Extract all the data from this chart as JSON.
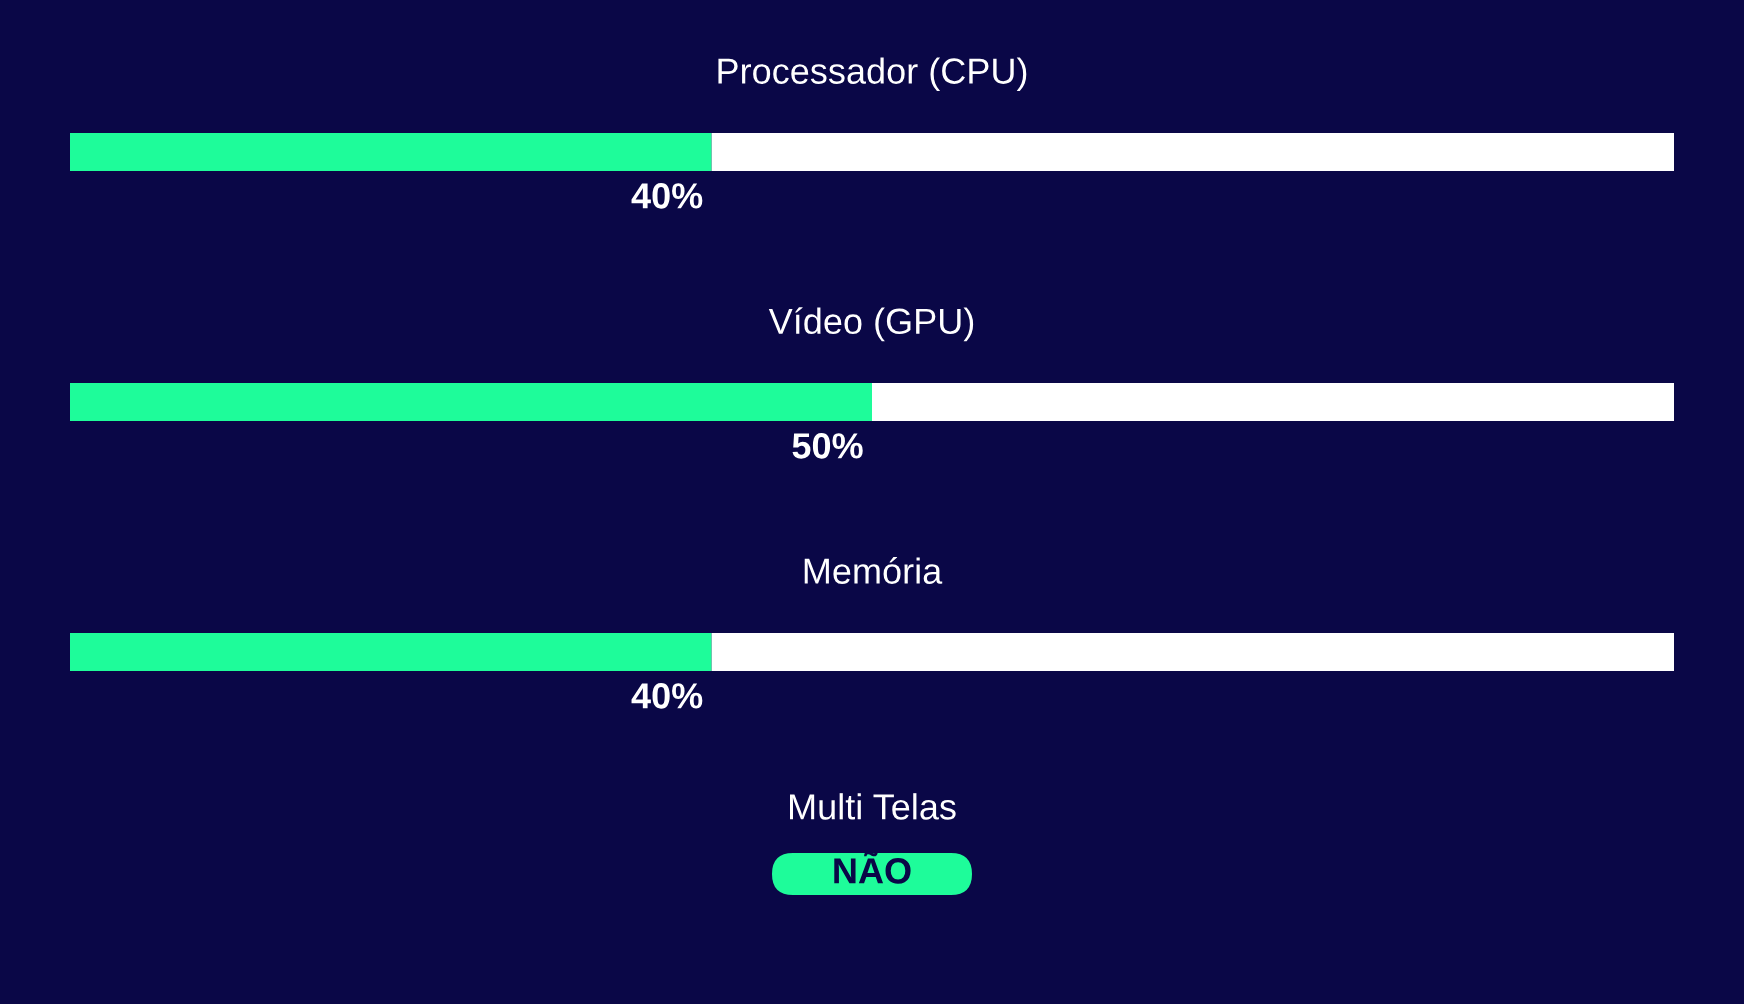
{
  "chart_data": {
    "type": "bar",
    "orientation": "horizontal",
    "stacked": true,
    "categories": [
      "Processador (CPU)",
      "Vídeo (GPU)",
      "Memória"
    ],
    "series": [
      {
        "color": "#1efc9a",
        "values": [
          40,
          50,
          40
        ],
        "value_labels": [
          "40%",
          "50%",
          "40%"
        ]
      },
      {
        "color": "#ffffff",
        "values": [
          60,
          50,
          60
        ]
      }
    ],
    "xlim": [
      0,
      100
    ],
    "tick_labels": "y",
    "annotations": [
      "Multi Telas",
      "NÃO"
    ]
  }
}
